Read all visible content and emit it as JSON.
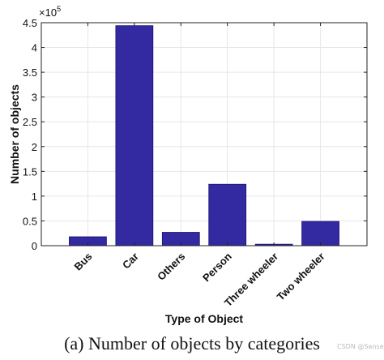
{
  "chart_data": {
    "type": "bar",
    "categories": [
      "Bus",
      "Car",
      "Others",
      "Person",
      "Three wheeler",
      "Two wheeler"
    ],
    "values": [
      18000,
      444000,
      27000,
      124000,
      3000,
      49000
    ],
    "xlabel": "Type of Object",
    "ylabel": "Number of objects",
    "ylim": [
      0,
      450000
    ],
    "yticks": [
      0,
      50000,
      100000,
      150000,
      200000,
      250000,
      300000,
      350000,
      400000,
      450000
    ],
    "ytick_labels": [
      "0",
      "0.5",
      "1",
      "1.5",
      "2",
      "2.5",
      "3",
      "3.5",
      "4",
      "4.5"
    ],
    "exponent_label_base": "×10",
    "exponent_label_power": "5",
    "grid": true,
    "bar_color": "#3329a0"
  },
  "caption": "(a)  Number of objects by categories",
  "watermark": "CSDN @Sanse_"
}
